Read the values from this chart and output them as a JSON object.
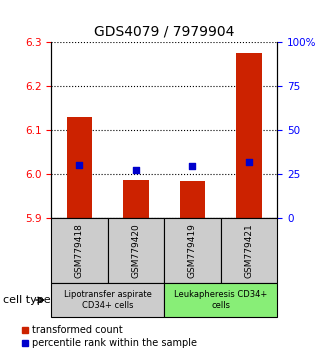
{
  "title": "GDS4079 / 7979904",
  "samples": [
    "GSM779418",
    "GSM779420",
    "GSM779419",
    "GSM779421"
  ],
  "red_values": [
    6.13,
    5.985,
    5.983,
    6.275
  ],
  "blue_values_pct": [
    30.0,
    27.0,
    29.5,
    32.0
  ],
  "ylim_left": [
    5.9,
    6.3
  ],
  "ylim_right": [
    0,
    100
  ],
  "yticks_left": [
    5.9,
    6.0,
    6.1,
    6.2,
    6.3
  ],
  "yticks_right": [
    0,
    25,
    50,
    75,
    100
  ],
  "ytick_labels_right": [
    "0",
    "25",
    "50",
    "75",
    "100%"
  ],
  "bar_base": 5.9,
  "bar_color": "#cc2200",
  "dot_color": "#0000cc",
  "groups": [
    {
      "label": "Lipotransfer aspirate\nCD34+ cells",
      "color": "#cccccc",
      "samples": [
        0,
        1
      ]
    },
    {
      "label": "Leukapheresis CD34+\ncells",
      "color": "#88ee77",
      "samples": [
        2,
        3
      ]
    }
  ],
  "cell_type_label": "cell type",
  "legend_red": "transformed count",
  "legend_blue": "percentile rank within the sample",
  "grid_color": "black",
  "plot_bg": "white",
  "title_fontsize": 10,
  "tick_fontsize": 7.5,
  "sample_fontsize": 6.5,
  "group_fontsize": 6.0,
  "legend_fontsize": 7.0
}
